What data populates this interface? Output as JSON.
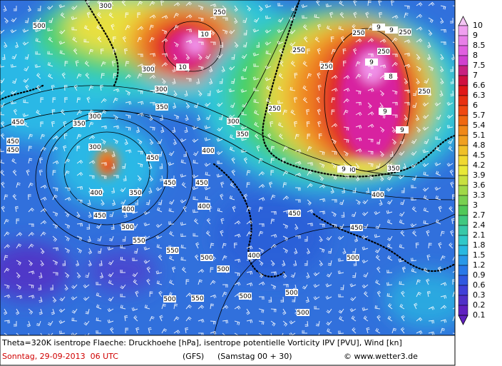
{
  "map": {
    "contour_labels": [
      500,
      300,
      250,
      10,
      10,
      300,
      300,
      350,
      300,
      350,
      450,
      450,
      450,
      300,
      450,
      400,
      450,
      450,
      400,
      350,
      400,
      450,
      500,
      550,
      550,
      400,
      500,
      400,
      500,
      500,
      550,
      500,
      500,
      500,
      450,
      450,
      500,
      400,
      350,
      500,
      250,
      250,
      250,
      250,
      250,
      250,
      350,
      300,
      250,
      9,
      9,
      9,
      8,
      9,
      9,
      9
    ]
  },
  "legend": {
    "levels": [
      10,
      9,
      8.5,
      8,
      7.5,
      7,
      6.6,
      6.3,
      6,
      5.7,
      5.4,
      5.1,
      4.8,
      4.5,
      4.2,
      3.9,
      3.6,
      3.3,
      3,
      2.7,
      2.4,
      2.1,
      1.8,
      1.5,
      1.2,
      0.9,
      0.6,
      0.3,
      0.2,
      0.1
    ]
  },
  "footer": {
    "description": "Theta=320K isentrope Flaeche: Druckhoehe [hPa], isentrope potentielle Vorticity IPV [PVU], Wind [kn]",
    "date": "Sonntag, 29-09-2013  06 UTC",
    "model": "(GFS)",
    "run": "(Samstag 00 + 30)",
    "credit": "© www.wetter3.de"
  }
}
